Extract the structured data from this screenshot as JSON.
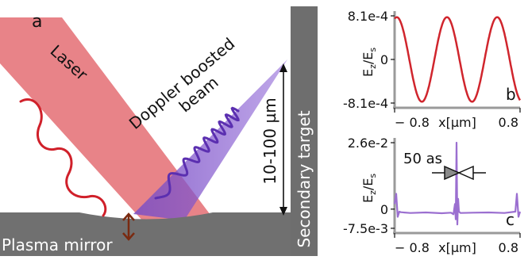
{
  "figure": {
    "schematic": {
      "panel_label": "a",
      "laser_label": "Laser",
      "beam_label": "Doppler boosted\nbeam",
      "distance_label": "10-100 µm",
      "secondary_target_label": "Secondary target",
      "plasma_mirror_label": "Plasma mirror"
    },
    "colors": {
      "laser": "#e05a60",
      "laser_wave": "#d0202a",
      "beam": "#7a4fc4",
      "beam_wave": "#5b2fb0",
      "mirror": "#707070",
      "target": "#6e6e6e",
      "plot_line_b": "#d0252d",
      "plot_line_c": "#9b6fd0",
      "arrow": "#7a2a10"
    }
  },
  "chart_data": [
    {
      "type": "line",
      "panel_label": "b",
      "ylabel": "Ez/Es",
      "xlabel": "x[µm]",
      "yticks": [
        "8.1e-4",
        "0",
        "-8.1e-4"
      ],
      "xticks": [
        "-0.8",
        "0.8"
      ],
      "xlim": [
        -0.8,
        0.8
      ],
      "ylim": [
        -0.00081,
        0.00081
      ],
      "series": [
        {
          "values_description": "sinusoid, ~2.5 periods over x range",
          "x": [
            -0.8,
            -0.72,
            -0.64,
            -0.56,
            -0.48,
            -0.4,
            -0.32,
            -0.24,
            -0.16,
            -0.08,
            0.0,
            0.08,
            0.16,
            0.24,
            0.32,
            0.4,
            0.48,
            0.56,
            0.64,
            0.72,
            0.8
          ],
          "y": [
            0.00078,
            0.00081,
            0.00055,
            0.0,
            -0.00055,
            -0.00081,
            -0.00055,
            0.0,
            0.00055,
            0.00081,
            0.00055,
            0.0,
            -0.00055,
            -0.00081,
            -0.00055,
            0.0,
            0.00055,
            0.00081,
            0.00055,
            0.0,
            0.0004
          ]
        }
      ]
    },
    {
      "type": "line",
      "panel_label": "c",
      "ylabel": "Ez/Es",
      "xlabel": "x[µm]",
      "yticks": [
        "2.6e-2",
        "0",
        "-7.5e-3"
      ],
      "xticks": [
        "-0.8",
        "0.8"
      ],
      "xlim": [
        -0.8,
        0.8
      ],
      "ylim": [
        -0.0075,
        0.026
      ],
      "annotation": "50 as",
      "series": [
        {
          "x": [
            -0.8,
            -0.78,
            -0.76,
            -0.74,
            -0.72,
            -0.6,
            -0.4,
            -0.2,
            -0.08,
            -0.05,
            -0.03,
            -0.02,
            -0.01,
            0.0,
            0.01,
            0.02,
            0.04,
            0.2,
            0.4,
            0.6,
            0.74,
            0.76,
            0.78,
            0.8
          ],
          "y": [
            0.002,
            0.006,
            -0.003,
            -0.001,
            -0.0012,
            -0.0015,
            -0.0013,
            -0.0016,
            -0.0014,
            -0.002,
            0.002,
            -0.004,
            0.026,
            -0.006,
            0.004,
            -0.001,
            -0.0015,
            -0.0014,
            -0.0013,
            -0.0015,
            -0.001,
            0.006,
            -0.003,
            -0.001
          ]
        }
      ]
    }
  ]
}
